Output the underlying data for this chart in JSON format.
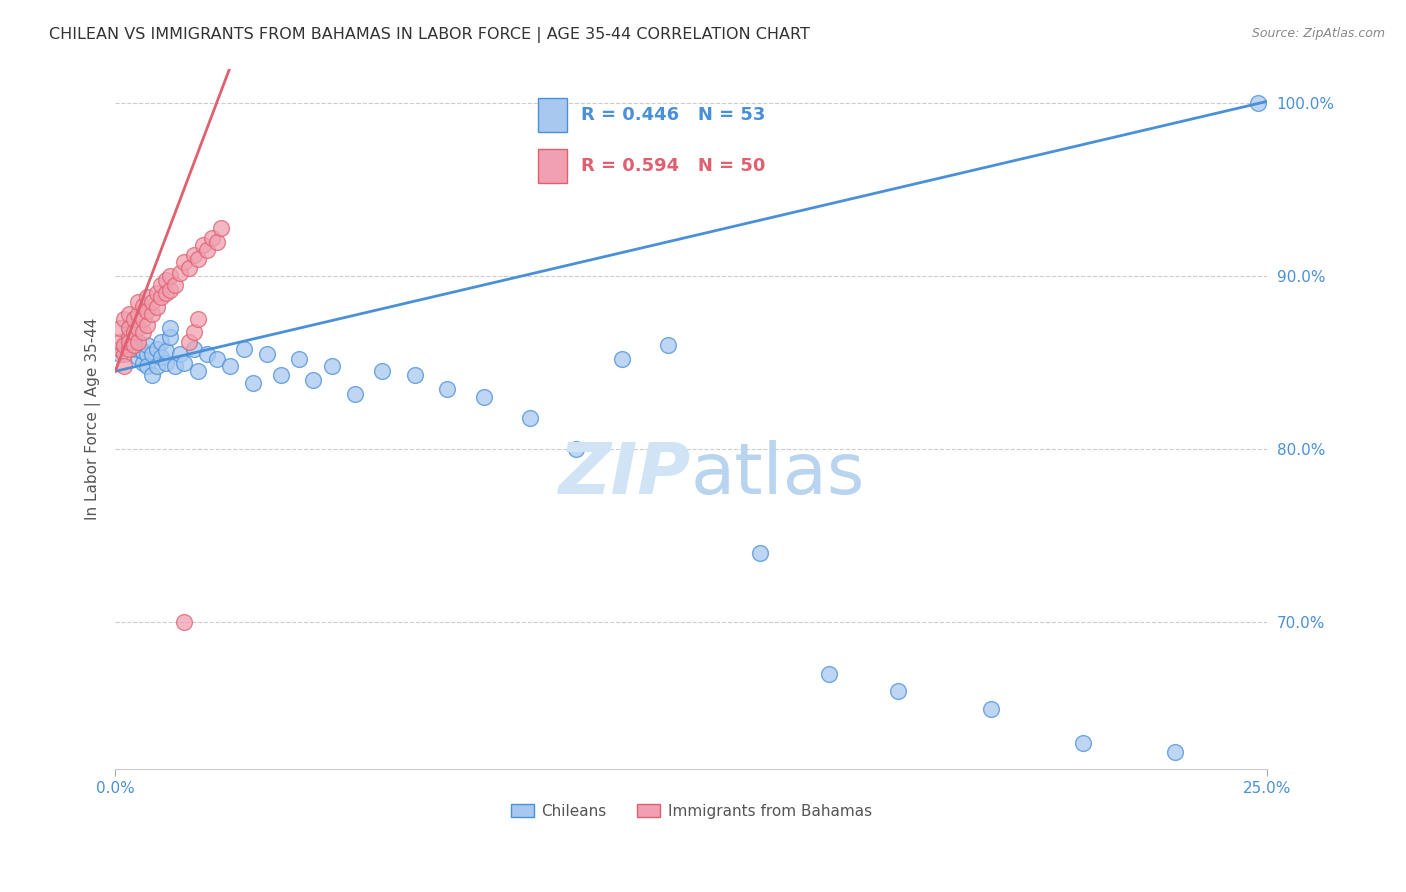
{
  "title": "CHILEAN VS IMMIGRANTS FROM BAHAMAS IN LABOR FORCE | AGE 35-44 CORRELATION CHART",
  "source": "Source: ZipAtlas.com",
  "ylabel": "In Labor Force | Age 35-44",
  "xlim": [
    0.0,
    0.25
  ],
  "ylim": [
    0.615,
    1.02
  ],
  "yticks": [
    0.7,
    0.8,
    0.9,
    1.0
  ],
  "ytick_labels": [
    "70.0%",
    "80.0%",
    "90.0%",
    "100.0%"
  ],
  "xtick_positions": [
    0.0,
    0.25
  ],
  "xtick_labels": [
    "0.0%",
    "25.0%"
  ],
  "blue_R": 0.446,
  "blue_N": 53,
  "pink_R": 0.594,
  "pink_N": 50,
  "blue_color": "#a8c8f0",
  "pink_color": "#f0a0b0",
  "blue_line_color": "#4a90d9",
  "pink_line_color": "#e06070",
  "legend_label_blue": "Chileans",
  "legend_label_pink": "Immigrants from Bahamas",
  "blue_x": [
    0.001,
    0.002,
    0.003,
    0.004,
    0.004,
    0.005,
    0.005,
    0.006,
    0.006,
    0.007,
    0.007,
    0.007,
    0.008,
    0.008,
    0.009,
    0.009,
    0.01,
    0.01,
    0.011,
    0.011,
    0.012,
    0.012,
    0.013,
    0.014,
    0.015,
    0.017,
    0.018,
    0.02,
    0.022,
    0.025,
    0.028,
    0.03,
    0.033,
    0.036,
    0.04,
    0.043,
    0.047,
    0.052,
    0.058,
    0.065,
    0.072,
    0.08,
    0.09,
    0.1,
    0.11,
    0.12,
    0.14,
    0.155,
    0.17,
    0.19,
    0.21,
    0.23,
    0.248
  ],
  "blue_y": [
    0.855,
    0.86,
    0.87,
    0.858,
    0.862,
    0.853,
    0.858,
    0.85,
    0.857,
    0.855,
    0.86,
    0.848,
    0.855,
    0.843,
    0.858,
    0.848,
    0.853,
    0.862,
    0.85,
    0.857,
    0.865,
    0.87,
    0.848,
    0.855,
    0.85,
    0.858,
    0.845,
    0.855,
    0.852,
    0.848,
    0.858,
    0.838,
    0.855,
    0.843,
    0.852,
    0.84,
    0.848,
    0.832,
    0.845,
    0.843,
    0.835,
    0.83,
    0.818,
    0.8,
    0.852,
    0.86,
    0.74,
    0.67,
    0.66,
    0.65,
    0.63,
    0.625,
    1.0
  ],
  "pink_x": [
    0.001,
    0.001,
    0.001,
    0.002,
    0.002,
    0.002,
    0.002,
    0.003,
    0.003,
    0.003,
    0.003,
    0.003,
    0.004,
    0.004,
    0.004,
    0.005,
    0.005,
    0.005,
    0.005,
    0.006,
    0.006,
    0.006,
    0.007,
    0.007,
    0.007,
    0.008,
    0.008,
    0.009,
    0.009,
    0.01,
    0.01,
    0.011,
    0.011,
    0.012,
    0.012,
    0.013,
    0.014,
    0.015,
    0.016,
    0.017,
    0.018,
    0.019,
    0.02,
    0.021,
    0.022,
    0.023,
    0.015,
    0.016,
    0.017,
    0.018
  ],
  "pink_y": [
    0.858,
    0.862,
    0.87,
    0.855,
    0.86,
    0.848,
    0.875,
    0.865,
    0.858,
    0.862,
    0.87,
    0.878,
    0.86,
    0.868,
    0.875,
    0.862,
    0.87,
    0.878,
    0.885,
    0.868,
    0.875,
    0.883,
    0.872,
    0.88,
    0.888,
    0.878,
    0.885,
    0.882,
    0.89,
    0.888,
    0.895,
    0.89,
    0.898,
    0.892,
    0.9,
    0.895,
    0.902,
    0.908,
    0.905,
    0.912,
    0.91,
    0.918,
    0.915,
    0.922,
    0.92,
    0.928,
    0.7,
    0.862,
    0.868,
    0.875
  ],
  "zipatlas_text": "ZIPatlas",
  "zipatlas_color": "#d0e4f5"
}
